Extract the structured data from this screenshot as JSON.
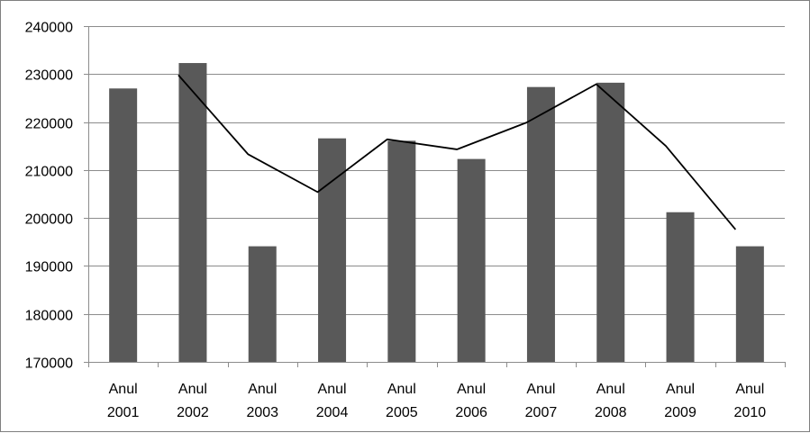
{
  "chart_data": {
    "type": "bar",
    "title": "",
    "xlabel": "",
    "ylabel": "",
    "categories": [
      [
        "Anul",
        "2001"
      ],
      [
        "Anul",
        "2002"
      ],
      [
        "Anul",
        "2003"
      ],
      [
        "Anul",
        "2004"
      ],
      [
        "Anul",
        "2005"
      ],
      [
        "Anul",
        "2006"
      ],
      [
        "Anul",
        "2007"
      ],
      [
        "Anul",
        "2008"
      ],
      [
        "Anul",
        "2009"
      ],
      [
        "Anul",
        "2010"
      ]
    ],
    "series": [
      {
        "type": "bar",
        "color": "#595959",
        "values": [
          227000,
          232300,
          194100,
          216600,
          216100,
          212300,
          227300,
          228200,
          201200,
          194100
        ]
      },
      {
        "type": "line",
        "color": "#000000",
        "values": [
          null,
          229800,
          213300,
          205400,
          216400,
          214300,
          219900,
          227900,
          215000,
          197600
        ]
      }
    ],
    "ylim": [
      170000,
      240000
    ],
    "yticks": [
      "170000",
      "180000",
      "190000",
      "200000",
      "210000",
      "220000",
      "230000",
      "240000"
    ],
    "grid": true,
    "legend": "none"
  }
}
